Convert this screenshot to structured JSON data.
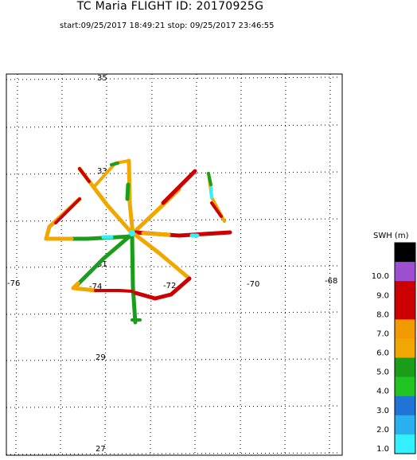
{
  "title": "TC Maria FLIGHT ID: 20170925G",
  "subtitle": "start:09/25/2017 18:49:21 stop: 09/25/2017 23:46:55",
  "map": {
    "lat_labels": [
      "35",
      "33",
      "31",
      "29",
      "27"
    ],
    "lon_labels": [
      "-76",
      "-74",
      "-72",
      "-70",
      "-68"
    ],
    "grid": true
  },
  "legend": {
    "title": "SWH (m)",
    "bins": [
      {
        "label": "",
        "color": "#000000"
      },
      {
        "label": "10.0",
        "color": "#9c4fd0"
      },
      {
        "label": "9.0",
        "color": "#cc0000"
      },
      {
        "label": "8.0",
        "color": "#cc0000"
      },
      {
        "label": "7.0",
        "color": "#f29b00"
      },
      {
        "label": "6.0",
        "color": "#f0a800"
      },
      {
        "label": "5.0",
        "color": "#1a9e1a"
      },
      {
        "label": "4.0",
        "color": "#22c422"
      },
      {
        "label": "3.0",
        "color": "#1f74d6"
      },
      {
        "label": "2.0",
        "color": "#2ab0ee"
      },
      {
        "label": "1.0",
        "color": "#33f0ff"
      }
    ]
  },
  "chart_data": {
    "type": "scatter",
    "title": "TC Maria FLIGHT ID: 20170925G",
    "variable": "SWH (m)",
    "xlim": [
      -76,
      -68
    ],
    "ylim": [
      27,
      35
    ],
    "flight_segments": [
      {
        "from": [
          -73.4,
          31.6
        ],
        "to": [
          -72.3,
          30.5
        ],
        "swh": "orange"
      },
      {
        "from": [
          -72.3,
          30.5
        ],
        "to": [
          -71.9,
          30.2
        ],
        "swh": "red"
      },
      {
        "from": [
          -73.4,
          31.6
        ],
        "to": [
          -72.5,
          32.5
        ],
        "swh": "orange"
      },
      {
        "from": [
          -72.5,
          32.5
        ],
        "to": [
          -71.6,
          33.4
        ],
        "swh": "red"
      },
      {
        "from": [
          -73.4,
          31.6
        ],
        "to": [
          -75.1,
          31.4
        ],
        "swh": "green"
      },
      {
        "from": [
          -75.1,
          31.4
        ],
        "to": [
          -75.5,
          31.4
        ],
        "swh": "orange"
      },
      {
        "from": [
          -73.4,
          31.6
        ],
        "to": [
          -71.0,
          31.5
        ],
        "swh": "red"
      },
      {
        "from": [
          -73.4,
          31.6
        ],
        "to": [
          -73.4,
          28.9
        ],
        "swh": "green"
      },
      {
        "from": [
          -73.4,
          31.6
        ],
        "to": [
          -74.6,
          30.1
        ],
        "swh": "green"
      },
      {
        "from": [
          -74.6,
          30.1
        ],
        "to": [
          -74.9,
          30.0
        ],
        "swh": "orange"
      },
      {
        "from": [
          -73.4,
          31.6
        ],
        "to": [
          -73.5,
          33.5
        ],
        "swh": "orange"
      },
      {
        "from": [
          -73.4,
          31.6
        ],
        "to": [
          -74.7,
          33.3
        ],
        "swh": "orange"
      },
      {
        "from": [
          -74.7,
          33.3
        ],
        "to": [
          -75.1,
          33.4
        ],
        "swh": "red"
      }
    ]
  }
}
